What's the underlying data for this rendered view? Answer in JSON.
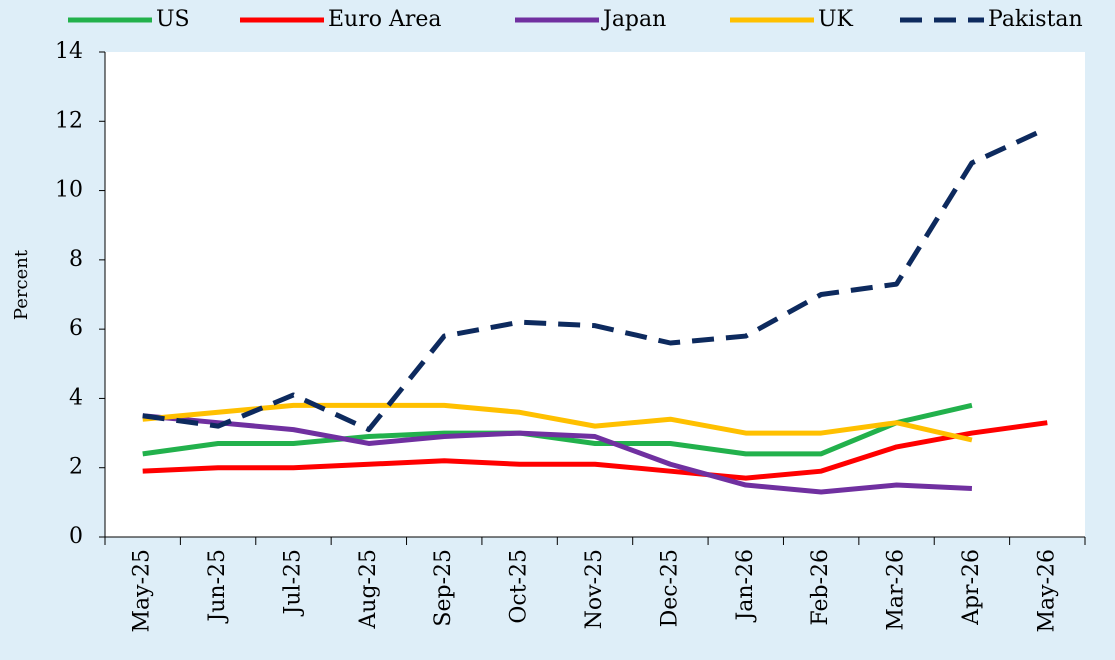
{
  "chart_data": {
    "type": "line",
    "y_label": "Percent",
    "categories": [
      "May-25",
      "Jun-25",
      "Jul-25",
      "Aug-25",
      "Sep-25",
      "Oct-25",
      "Nov-25",
      "Dec-25",
      "Jan-26",
      "Feb-26",
      "Mar-26",
      "Apr-26",
      "May-26"
    ],
    "series": [
      {
        "name": "US",
        "color": "#22b14c",
        "dash": false,
        "values": [
          2.4,
          2.7,
          2.7,
          2.9,
          3.0,
          3.0,
          2.7,
          2.7,
          2.4,
          2.4,
          3.3,
          3.8,
          null
        ]
      },
      {
        "name": "Euro Area",
        "color": "#ff0000",
        "dash": false,
        "values": [
          1.9,
          2.0,
          2.0,
          2.1,
          2.2,
          2.1,
          2.1,
          1.9,
          1.7,
          1.9,
          2.6,
          3.0,
          3.3
        ]
      },
      {
        "name": "Japan",
        "color": "#7030a0",
        "dash": false,
        "values": [
          3.5,
          3.3,
          3.1,
          2.7,
          2.9,
          3.0,
          2.9,
          2.1,
          1.5,
          1.3,
          1.5,
          1.4,
          null
        ]
      },
      {
        "name": "UK",
        "color": "#ffc000",
        "dash": false,
        "values": [
          3.4,
          3.6,
          3.8,
          3.8,
          3.8,
          3.6,
          3.2,
          3.4,
          3.0,
          3.0,
          3.3,
          2.8,
          null
        ]
      },
      {
        "name": "Pakistan",
        "color": "#0d2a5e",
        "dash": true,
        "values": [
          3.5,
          3.2,
          4.1,
          3.1,
          5.8,
          6.2,
          6.1,
          5.6,
          5.8,
          7.0,
          7.3,
          10.8,
          11.8
        ]
      }
    ],
    "ylim": [
      0,
      14
    ],
    "yticks": [
      0,
      2,
      4,
      6,
      8,
      10,
      12,
      14
    ],
    "grid": false
  }
}
